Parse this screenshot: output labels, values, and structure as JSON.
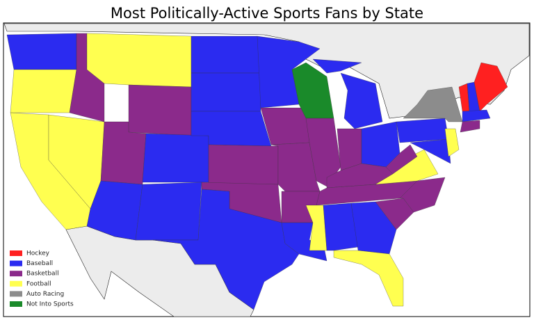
{
  "title": "Most Politically-Active Sports Fans by State",
  "legend": [
    {
      "label": "Hockey",
      "color": "#ff2020"
    },
    {
      "label": "Baseball",
      "color": "#2b2bf0"
    },
    {
      "label": "Basketball",
      "color": "#8b2a8b"
    },
    {
      "label": "Football",
      "color": "#ffff50"
    },
    {
      "label": "Auto Racing",
      "color": "#8c8c8c"
    },
    {
      "label": "Not Into Sports",
      "color": "#1a8a2a"
    }
  ]
}
